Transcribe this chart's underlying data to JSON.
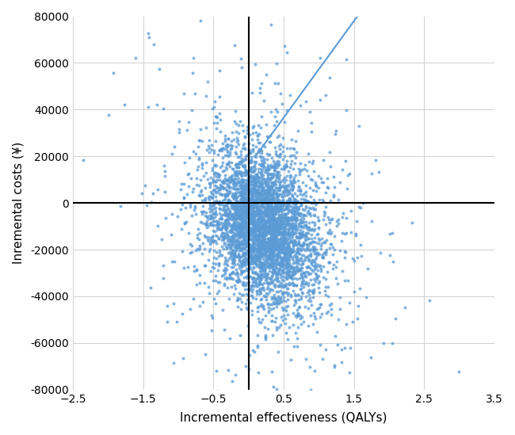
{
  "title": "",
  "xlabel": "Incremental effectiveness (QALYs)",
  "ylabel": "Inremental costs (¥)",
  "xlim": [
    -2.5,
    3.5
  ],
  "ylim": [
    -80000,
    80000
  ],
  "xticks": [
    -2.5,
    -1.5,
    -0.5,
    0.5,
    1.5,
    2.5,
    3.5
  ],
  "yticks": [
    -80000,
    -60000,
    -40000,
    -20000,
    0,
    20000,
    40000,
    60000,
    80000
  ],
  "scatter_color": "#5B9BD5",
  "scatter_alpha": 0.75,
  "scatter_size": 8,
  "n_points": 4000,
  "mean_x": 0.2,
  "mean_y": -10000,
  "std_x": 0.38,
  "std_y": 16000,
  "correlation": -0.25,
  "wtp_line_x1": 0.1,
  "wtp_line_y1": 20000,
  "wtp_line_x2": 1.55,
  "wtp_line_y2": 80000,
  "line_color": "#5B9BD5",
  "grid_color": "#D0D0D0",
  "axis_color": "#000000",
  "background_color": "#FFFFFF",
  "seed": 42
}
